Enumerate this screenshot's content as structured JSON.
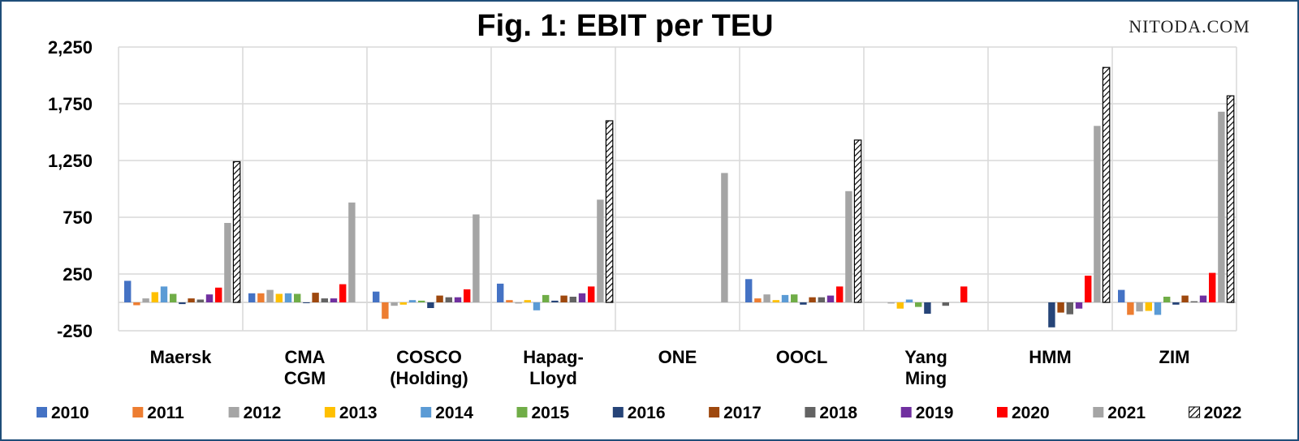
{
  "watermark": "NITODA.COM",
  "chart_data": {
    "type": "bar",
    "title": "Fig. 1: EBIT per TEU",
    "xlabel": "",
    "ylabel": "",
    "ylim": [
      -250,
      2250
    ],
    "yticks": [
      -250,
      250,
      750,
      1250,
      1750,
      2250
    ],
    "ytick_labels": [
      "-250",
      "250",
      "750",
      "1,250",
      "1,750",
      "2,250"
    ],
    "grid": true,
    "legend_position": "bottom",
    "categories": [
      [
        "Maersk"
      ],
      [
        "CMA",
        "CGM"
      ],
      [
        "COSCO",
        "(Holding)"
      ],
      [
        "Hapag-",
        "Lloyd"
      ],
      [
        "ONE"
      ],
      [
        "OOCL"
      ],
      [
        "Yang",
        "Ming"
      ],
      [
        "HMM"
      ],
      [
        "ZIM"
      ]
    ],
    "series": [
      {
        "name": "2010",
        "color": "#4472c4",
        "values": [
          190,
          80,
          95,
          165,
          null,
          205,
          null,
          null,
          110
        ]
      },
      {
        "name": "2011",
        "color": "#ed7d31",
        "values": [
          -25,
          80,
          -145,
          20,
          null,
          35,
          null,
          null,
          -110
        ]
      },
      {
        "name": "2012",
        "color": "#a5a5a5",
        "values": [
          35,
          110,
          -30,
          -10,
          null,
          70,
          -10,
          null,
          -80
        ]
      },
      {
        "name": "2013",
        "color": "#ffc000",
        "values": [
          90,
          75,
          -20,
          20,
          null,
          20,
          -55,
          null,
          -75
        ]
      },
      {
        "name": "2014",
        "color": "#5b9bd5",
        "values": [
          140,
          80,
          20,
          -70,
          null,
          65,
          25,
          null,
          -110
        ]
      },
      {
        "name": "2015",
        "color": "#70ad47",
        "values": [
          75,
          75,
          15,
          65,
          null,
          70,
          -40,
          null,
          50
        ]
      },
      {
        "name": "2016",
        "color": "#264478",
        "values": [
          -15,
          0,
          -50,
          15,
          null,
          -20,
          -100,
          -220,
          -20
        ]
      },
      {
        "name": "2017",
        "color": "#9e480e",
        "values": [
          35,
          85,
          60,
          60,
          null,
          45,
          null,
          -90,
          60
        ]
      },
      {
        "name": "2018",
        "color": "#636363",
        "values": [
          25,
          35,
          45,
          50,
          null,
          45,
          -30,
          -105,
          10
        ]
      },
      {
        "name": "2019",
        "color": "#7030a0",
        "values": [
          70,
          35,
          45,
          80,
          null,
          60,
          null,
          -55,
          60
        ]
      },
      {
        "name": "2020",
        "color": "#ff0000",
        "values": [
          130,
          160,
          115,
          140,
          null,
          140,
          140,
          235,
          260
        ]
      },
      {
        "name": "2021",
        "color": "#a5a5a5",
        "values": [
          700,
          880,
          775,
          905,
          1140,
          980,
          null,
          1555,
          1680
        ]
      },
      {
        "name": "2022",
        "color": "#ffffff",
        "pattern": "hatched",
        "values": [
          1240,
          null,
          null,
          1600,
          null,
          1430,
          null,
          2070,
          1820
        ]
      }
    ]
  }
}
